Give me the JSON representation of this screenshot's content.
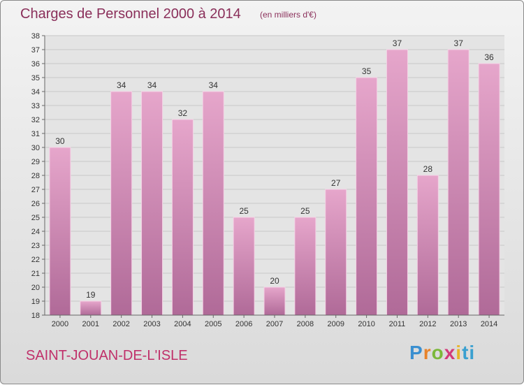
{
  "title": "Charges de Personnel 2000 à 2014",
  "subtitle": "(en milliers d'€)",
  "commune": "SAINT-JOUAN-DE-L'ISLE",
  "logo": {
    "p1": "P",
    "p2": "r",
    "p3": "o",
    "p4": "x",
    "p5": "i",
    "p6": "ti"
  },
  "colors": {
    "bar_top": "#e6a6cb",
    "bar_bottom": "#b06a98",
    "bar_edge": "#f4d0e4",
    "title": "#8a2f5a",
    "commune": "#c0306a",
    "grid": "#c8c8c8"
  },
  "chart_data": {
    "type": "bar",
    "categories": [
      "2000",
      "2001",
      "2002",
      "2003",
      "2004",
      "2005",
      "2006",
      "2007",
      "2008",
      "2009",
      "2010",
      "2011",
      "2012",
      "2013",
      "2014"
    ],
    "values": [
      30,
      19,
      34,
      34,
      32,
      34,
      25,
      20,
      25,
      27,
      35,
      37,
      28,
      37,
      36
    ],
    "ylim": [
      18,
      38
    ],
    "yticks": [
      18,
      19,
      20,
      21,
      22,
      23,
      24,
      25,
      26,
      27,
      28,
      29,
      30,
      31,
      32,
      33,
      34,
      35,
      36,
      37,
      38
    ],
    "data_labels": true,
    "grid": true
  }
}
